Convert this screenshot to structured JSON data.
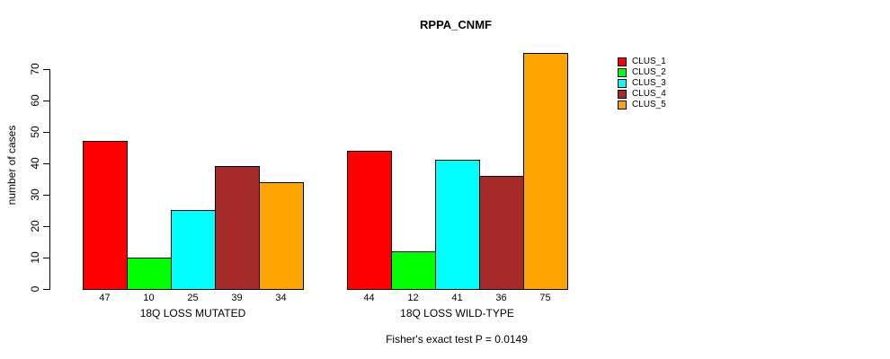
{
  "title": "RPPA_CNMF",
  "ylabel": "number of cases",
  "footer": "Fisher's exact test P = 0.0149",
  "colors": {
    "background": "#ffffff",
    "axis": "#000000",
    "bar_border": "#000000"
  },
  "chart_data": {
    "type": "bar",
    "title": "RPPA_CNMF",
    "xlabel": "",
    "ylabel": "number of cases",
    "categories": [
      "18Q LOSS MUTATED",
      "18Q LOSS WILD-TYPE"
    ],
    "series": [
      {
        "name": "CLUS_1",
        "color": "#FF0000",
        "values": [
          47,
          44
        ]
      },
      {
        "name": "CLUS_2",
        "color": "#00FF00",
        "values": [
          10,
          12
        ]
      },
      {
        "name": "CLUS_3",
        "color": "#00FFFF",
        "values": [
          25,
          41
        ]
      },
      {
        "name": "CLUS_4",
        "color": "#A52A2A",
        "values": [
          39,
          36
        ]
      },
      {
        "name": "CLUS_5",
        "color": "#FFA500",
        "values": [
          34,
          75
        ]
      }
    ],
    "bar_value_labels": [
      [
        47,
        10,
        25,
        39,
        34
      ],
      [
        44,
        12,
        41,
        36,
        75
      ]
    ],
    "yticks": [
      0,
      10,
      20,
      30,
      40,
      50,
      60,
      70
    ],
    "ylim": [
      0,
      70
    ],
    "grid": false,
    "legend_position": "right",
    "legend_entries": [
      "CLUS_1",
      "CLUS_2",
      "CLUS_3",
      "CLUS_4",
      "CLUS_5"
    ],
    "annotation": "Fisher's exact test P = 0.0149"
  }
}
